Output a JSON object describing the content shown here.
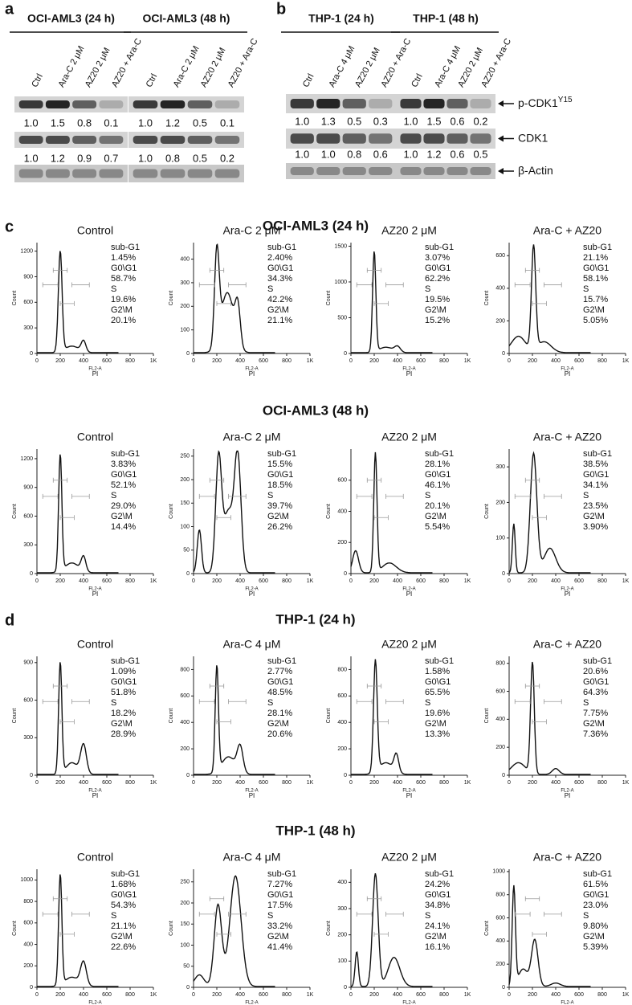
{
  "blots": [
    {
      "label": "a",
      "groups": [
        {
          "title": "OCI-AML3 (24 h)",
          "lanes": [
            "Ctrl",
            "Ara-C 2 μM",
            "AZ20 2 μM",
            "AZ20 + Ara-C"
          ],
          "quant": [
            [
              "1.0",
              "1.5",
              "0.8",
              "0.1"
            ],
            [
              "1.0",
              "1.2",
              "0.9",
              "0.7"
            ]
          ]
        },
        {
          "title": "OCI-AML3 (48 h)",
          "lanes": [
            "Ctrl",
            "Ara-C 2 μM",
            "AZ20 2 μM",
            "AZ20 + Ara-C"
          ],
          "quant": [
            [
              "1.0",
              "1.2",
              "0.5",
              "0.1"
            ],
            [
              "1.0",
              "0.8",
              "0.5",
              "0.2"
            ]
          ]
        }
      ]
    },
    {
      "label": "b",
      "groups": [
        {
          "title": "THP-1 (24 h)",
          "lanes": [
            "Ctrl",
            "Ara-C 4 μM",
            "AZ20 2 μM",
            "AZ20 + Ara-C"
          ],
          "quant": [
            [
              "1.0",
              "1.3",
              "0.5",
              "0.3"
            ],
            [
              "1.0",
              "1.0",
              "0.8",
              "0.6"
            ]
          ]
        },
        {
          "title": "THP-1 (48 h)",
          "lanes": [
            "Ctrl",
            "Ara-C 4 μM",
            "AZ20 2 μM",
            "AZ20 + Ara-C"
          ],
          "quant": [
            [
              "1.0",
              "1.5",
              "0.6",
              "0.2"
            ],
            [
              "1.0",
              "1.2",
              "0.6",
              "0.5"
            ]
          ]
        }
      ],
      "markers": [
        {
          "name": "p-CDK1",
          "sup": "Y15"
        },
        {
          "name": "CDK1"
        },
        {
          "name": "β-Actin"
        }
      ]
    }
  ],
  "histograms": {
    "x_label": "FL2-A",
    "x_unit": "PI",
    "y_label": "Count",
    "x_ticks": [
      0,
      200,
      400,
      600,
      800,
      {
        "value": 1000,
        "label": "1K"
      }
    ],
    "stat_labels": [
      "sub-G1",
      "G0\\G1",
      "S",
      "G2\\M"
    ],
    "panels": [
      {
        "label": "c",
        "rows": [
          {
            "title": "OCI-AML3 (24 h)",
            "plots": [
              {
                "title": "Control",
                "ylim": [
                  0,
                  1300
                ],
                "y_ticks": [
                  0,
                  300,
                  600,
                  900,
                  1200
                ],
                "stats": [
                  "1.45%",
                  "58.7%",
                  "19.6%",
                  "20.1%"
                ]
              },
              {
                "title": "Ara-C 2 μM",
                "ylim": [
                  0,
                  470
                ],
                "y_ticks": [
                  0,
                  100,
                  200,
                  300,
                  400
                ],
                "stats": [
                  "2.40%",
                  "34.3%",
                  "42.2%",
                  "21.1%"
                ]
              },
              {
                "title": "AZ20  2 μM",
                "ylim": [
                  0,
                  1550
                ],
                "y_ticks": [
                  0,
                  500,
                  1000,
                  1500
                ],
                "stats": [
                  "3.07%",
                  "62.2%",
                  "19.5%",
                  "15.2%"
                ]
              },
              {
                "title": "Ara-C + AZ20",
                "ylim": [
                  0,
                  680
                ],
                "y_ticks": [
                  0,
                  200,
                  400,
                  600
                ],
                "stats": [
                  "21.1%",
                  "58.1%",
                  "15.7%",
                  "5.05%"
                ]
              }
            ]
          },
          {
            "title": "OCI-AML3 (48 h)",
            "plots": [
              {
                "title": "Control",
                "ylim": [
                  0,
                  1300
                ],
                "y_ticks": [
                  0,
                  300,
                  600,
                  900,
                  1200
                ],
                "stats": [
                  "3.83%",
                  "52.1%",
                  "29.0%",
                  "14.4%"
                ]
              },
              {
                "title": "Ara-C 2 μM",
                "ylim": [
                  0,
                  265
                ],
                "y_ticks": [
                  0,
                  50,
                  100,
                  150,
                  200,
                  250
                ],
                "stats": [
                  "15.5%",
                  "18.5%",
                  "39.7%",
                  "26.2%"
                ]
              },
              {
                "title": "AZ20  2 μM",
                "ylim": [
                  0,
                  800
                ],
                "y_ticks": [
                  0,
                  200,
                  400,
                  600
                ],
                "stats": [
                  "28.1%",
                  "46.1%",
                  "20.1%",
                  "5.54%"
                ]
              },
              {
                "title": "Ara-C + AZ20",
                "ylim": [
                  0,
                  350
                ],
                "y_ticks": [
                  0,
                  100,
                  200,
                  300
                ],
                "stats": [
                  "38.5%",
                  "34.1%",
                  "23.5%",
                  "3.90%"
                ]
              }
            ]
          }
        ]
      },
      {
        "label": "d",
        "rows": [
          {
            "title": "THP-1 (24 h)",
            "plots": [
              {
                "title": "Control",
                "ylim": [
                  0,
                  950
                ],
                "y_ticks": [
                  0,
                  300,
                  600,
                  900
                ],
                "stats": [
                  "1.09%",
                  "51.8%",
                  "18.2%",
                  "28.9%"
                ]
              },
              {
                "title": "Ara-C 4 μM",
                "ylim": [
                  0,
                  900
                ],
                "y_ticks": [
                  0,
                  200,
                  400,
                  600,
                  800
                ],
                "stats": [
                  "2.77%",
                  "48.5%",
                  "28.1%",
                  "20.6%"
                ]
              },
              {
                "title": "AZ20  2 μM",
                "ylim": [
                  0,
                  900
                ],
                "y_ticks": [
                  0,
                  200,
                  400,
                  600,
                  800
                ],
                "stats": [
                  "1.58%",
                  "65.5%",
                  "19.6%",
                  "13.3%"
                ]
              },
              {
                "title": "Ara-C + AZ20",
                "ylim": [
                  0,
                  850
                ],
                "y_ticks": [
                  0,
                  200,
                  400,
                  600,
                  800
                ],
                "stats": [
                  "20.6%",
                  "64.3%",
                  "7.75%",
                  "7.36%"
                ]
              }
            ]
          },
          {
            "title": "THP-1 (48 h)",
            "plots": [
              {
                "title": "Control",
                "ylim": [
                  0,
                  1100
                ],
                "y_ticks": [
                  0,
                  200,
                  400,
                  600,
                  800,
                  1000
                ],
                "stats": [
                  "1.68%",
                  "54.3%",
                  "21.1%",
                  "22.6%"
                ]
              },
              {
                "title": "Ara-C 4 μM",
                "ylim": [
                  0,
                  280
                ],
                "y_ticks": [
                  0,
                  50,
                  100,
                  150,
                  200,
                  250
                ],
                "stats": [
                  "7.27%",
                  "17.5%",
                  "33.2%",
                  "41.4%"
                ]
              },
              {
                "title": "AZ20  2 μM",
                "ylim": [
                  0,
                  450
                ],
                "y_ticks": [
                  0,
                  100,
                  200,
                  300,
                  400
                ],
                "stats": [
                  "24.2%",
                  "34.8%",
                  "24.1%",
                  "16.1%"
                ]
              },
              {
                "title": "Ara-C + AZ20",
                "ylim": [
                  0,
                  1020
                ],
                "y_ticks": [
                  0,
                  200,
                  400,
                  600,
                  800,
                  1000
                ],
                "stats": [
                  "61.5%",
                  "23.0%",
                  "9.80%",
                  "5.39%"
                ]
              }
            ]
          }
        ]
      }
    ]
  }
}
